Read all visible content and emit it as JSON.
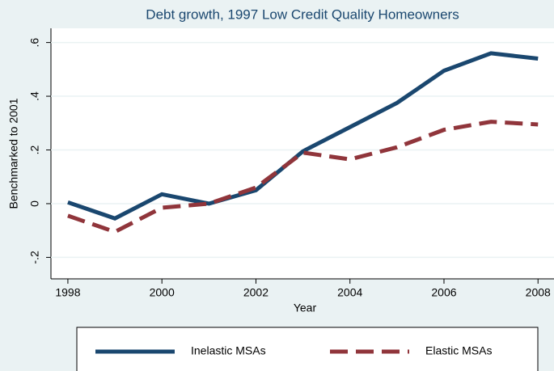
{
  "chart_data": {
    "type": "line",
    "title": "Debt growth, 1997 Low Credit Quality Homeowners",
    "x_label": "Year",
    "y_label": "Benchmarked to 2001",
    "x": [
      1998,
      1999,
      2000,
      2001,
      2002,
      2003,
      2004,
      2005,
      2006,
      2007,
      2008
    ],
    "series": [
      {
        "name": "Inelastic MSAs",
        "color": "#1a476f",
        "style": "solid",
        "values": [
          0.005,
          -0.055,
          0.035,
          0.0,
          0.05,
          0.195,
          0.285,
          0.375,
          0.495,
          0.56,
          0.54
        ]
      },
      {
        "name": "Elastic MSAs",
        "color": "#90353b",
        "style": "dashed",
        "values": [
          -0.045,
          -0.105,
          -0.015,
          0.0,
          0.06,
          0.19,
          0.165,
          0.21,
          0.275,
          0.305,
          0.295
        ]
      }
    ],
    "xlim": [
      1997.64,
      2008.34
    ],
    "xticks": [
      1998,
      2000,
      2002,
      2004,
      2006,
      2008
    ],
    "ylim": [
      -0.28,
      0.653
    ],
    "yticks": [
      {
        "value": -0.2,
        "label": "-.2"
      },
      0,
      {
        "value": 0.2,
        "label": ".2"
      },
      {
        "value": 0.4,
        "label": ".4"
      },
      {
        "value": 0.6,
        "label": ".6"
      }
    ],
    "grid": true,
    "legend": "bottom"
  }
}
